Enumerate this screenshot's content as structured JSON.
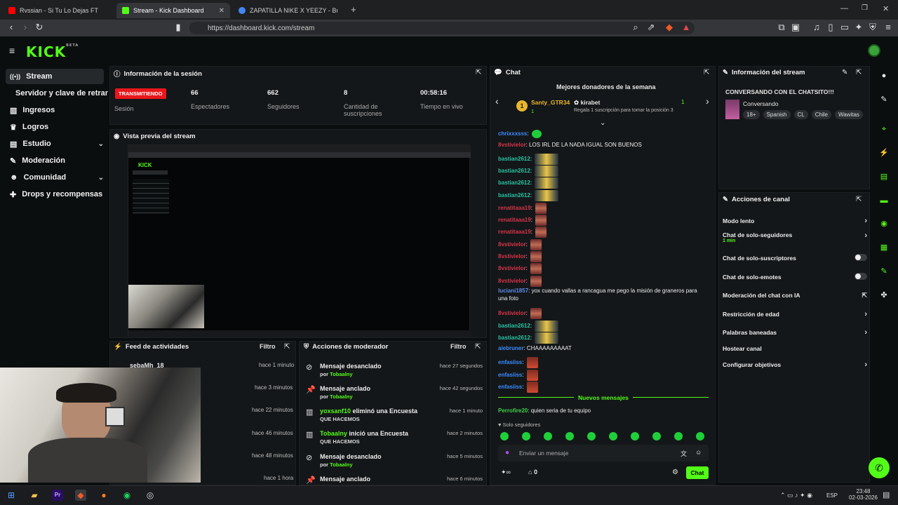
{
  "browser": {
    "tabs": [
      {
        "label": "Rvssian - Si Tu Lo Dejas FT Bad B",
        "color": "#ff0000"
      },
      {
        "label": "Stream - Kick Dashboard",
        "color": "#53fc18"
      },
      {
        "label": "ZAPATILLA NIKE X YEEZY - Buscar co",
        "color": "#4285f4"
      }
    ],
    "url": "https://dashboard.kick.com/stream"
  },
  "logo": {
    "text": "KICK",
    "beta": "BETA"
  },
  "sidebar": {
    "items": [
      {
        "label": "Stream",
        "icon": "radio-icon"
      },
      {
        "label": "Servidor y clave de retransm"
      },
      {
        "label": "Ingresos",
        "icon": "chart-icon"
      },
      {
        "label": "Logros",
        "icon": "trophy-icon"
      },
      {
        "label": "Estudio",
        "icon": "layers-icon"
      },
      {
        "label": "Moderación",
        "icon": "wrench-icon"
      },
      {
        "label": "Comunidad",
        "icon": "users-icon"
      },
      {
        "label": "Drops y recompensas",
        "icon": "gift-icon"
      }
    ]
  },
  "session": {
    "title": "Información de la sesión",
    "live_badge": "TRANSMITIENDO",
    "session_label": "Sesión",
    "stats": [
      {
        "value": "66",
        "label": "Espectadores"
      },
      {
        "value": "662",
        "label": "Seguidores"
      },
      {
        "value": "8",
        "label": "Cantidad de suscripciones"
      },
      {
        "value": "00:58:16",
        "label": "Tiempo en vivo"
      }
    ]
  },
  "preview": {
    "title": "Vista previa del stream"
  },
  "feed": {
    "title": "Feed de actividades",
    "filter": "Filtro",
    "first_user": "sebaMh_18",
    "times": [
      "hace 1 minuto",
      "hace 3 minutos",
      "hace 22 minutos",
      "hace 46 minutos",
      "hace 48 minutos",
      "hace 1 hora"
    ]
  },
  "modactions": {
    "title": "Acciones de moderador",
    "filter": "Filtro",
    "rows": [
      {
        "title": "Mensaje desanclado",
        "by": "Tobaalny",
        "prefix": "por ",
        "time": "hace 27 segundos",
        "icon": "unpin-icon"
      },
      {
        "title": "Mensaje anclado",
        "by": "Tobaalny",
        "prefix": "por ",
        "time": "hace 42 segundos",
        "icon": "pin-icon"
      },
      {
        "title": "yoxsanf10 eliminó una Encuesta",
        "user": "yoxsanf10",
        "action": " eliminó una Encuesta",
        "sub": "QUE HACEMOS",
        "time": "hace 1 minuto",
        "icon": "poll-icon"
      },
      {
        "title": "Tobaalny inició una Encuesta",
        "user": "Tobaalny",
        "action": " inició una Encuesta",
        "sub": "QUE HACEMOS",
        "time": "hace 2 minutos",
        "icon": "poll-icon"
      },
      {
        "title": "Mensaje desanclado",
        "by": "Tobaalny",
        "prefix": "por ",
        "time": "hace 5 minutos",
        "icon": "unpin-icon"
      },
      {
        "title": "Mensaje anclado",
        "time": "hace 6 minutos",
        "icon": "pin-icon"
      }
    ]
  },
  "chat": {
    "title": "Chat",
    "donors_title": "Mejores donadores de la semana",
    "donor1": {
      "name": "Santy_GTR34",
      "rank": "1",
      "count": "1"
    },
    "donor2": {
      "name": "kirabet",
      "count": "1",
      "hint": "Regala 1 suscripción para tomar la posición 3"
    },
    "messages": [
      {
        "user": "chrixxxsss",
        "color": "#3b8cff",
        "text": "",
        "emote": "green"
      },
      {
        "user": "8vstivielor",
        "color": "#d8334a",
        "text": "LOS IRL DE LA NADA IGUAL SON BUENOS"
      },
      {
        "user": "bastian2612",
        "color": "#27c3a4",
        "emote": "car"
      },
      {
        "user": "bastian2612",
        "color": "#27c3a4",
        "emote": "car"
      },
      {
        "user": "bastian2612",
        "color": "#27c3a4",
        "emote": "car"
      },
      {
        "user": "bastian2612",
        "color": "#27c3a4",
        "emote": "car"
      },
      {
        "user": "renatitaaa19",
        "color": "#d8334a",
        "emote": "red"
      },
      {
        "user": "renatitaaa19",
        "color": "#d8334a",
        "emote": "red"
      },
      {
        "user": "renatitaaa19",
        "color": "#d8334a",
        "emote": "red"
      },
      {
        "user": "8vstivielor",
        "color": "#d8334a",
        "emote": "red"
      },
      {
        "user": "8vstivielor",
        "color": "#d8334a",
        "emote": "red"
      },
      {
        "user": "8vstivielor",
        "color": "#d8334a",
        "emote": "red"
      },
      {
        "user": "8vstivielor",
        "color": "#d8334a",
        "emote": "red"
      },
      {
        "user": "luciani1857",
        "color": "#5d8de8",
        "text": "yox cuando vallas a rancagua me pego la misión de graneros para"
      },
      {
        "user": "",
        "color": "#eee",
        "text": "una foto"
      },
      {
        "user": "8vstivielor",
        "color": "#d8334a",
        "emote": "red"
      },
      {
        "user": "bastian2612",
        "color": "#27c3a4",
        "emote": "car"
      },
      {
        "user": "bastian2612",
        "color": "#27c3a4",
        "emote": "car"
      },
      {
        "user": "aiebruner",
        "color": "#3b8cff",
        "text": "CHAAAAAAAAAT"
      },
      {
        "user": "enfasiiss",
        "color": "#3b8cff",
        "emote": "sm"
      },
      {
        "user": "enfasiiss",
        "color": "#3b8cff",
        "emote": "sm"
      },
      {
        "user": "enfasiiss",
        "color": "#3b8cff",
        "emote": "sm"
      }
    ],
    "new_messages": "Nuevos mensajes",
    "last": {
      "user": "Perrofire20",
      "text": "quien seria de tu equipo"
    },
    "followers_only": "Solo seguidores",
    "input_placeholder": "Enviar un mensaje",
    "points": "0",
    "send": "Chat"
  },
  "streaminfo": {
    "title": "Información del stream",
    "stream_title": "CONVERSANDO CON EL CHATSITO!!!",
    "category": "Conversando",
    "tags": [
      "18+",
      "Spanish",
      "CL",
      "Chile",
      "Wawitas"
    ]
  },
  "channel": {
    "title": "Acciones de canal",
    "rows": [
      {
        "label": "Modo lento",
        "type": "chevron"
      },
      {
        "label": "Chat de solo-seguidores",
        "sub": "1 min",
        "type": "chevron"
      },
      {
        "label": "Chat de solo-suscriptores",
        "type": "toggle"
      },
      {
        "label": "Chat de solo-emotes",
        "type": "toggle"
      },
      {
        "label": "Moderación del chat con IA",
        "type": "external"
      },
      {
        "label": "Restricción de edad",
        "type": "chevron"
      },
      {
        "label": "Palabras baneadas",
        "type": "chevron"
      },
      {
        "label": "Hostear canal",
        "type": "none"
      },
      {
        "label": "Configurar objetivos",
        "type": "chevron"
      }
    ]
  },
  "taskbar": {
    "lang": "ESP",
    "time": "23:48",
    "date": "02-03-2026"
  }
}
